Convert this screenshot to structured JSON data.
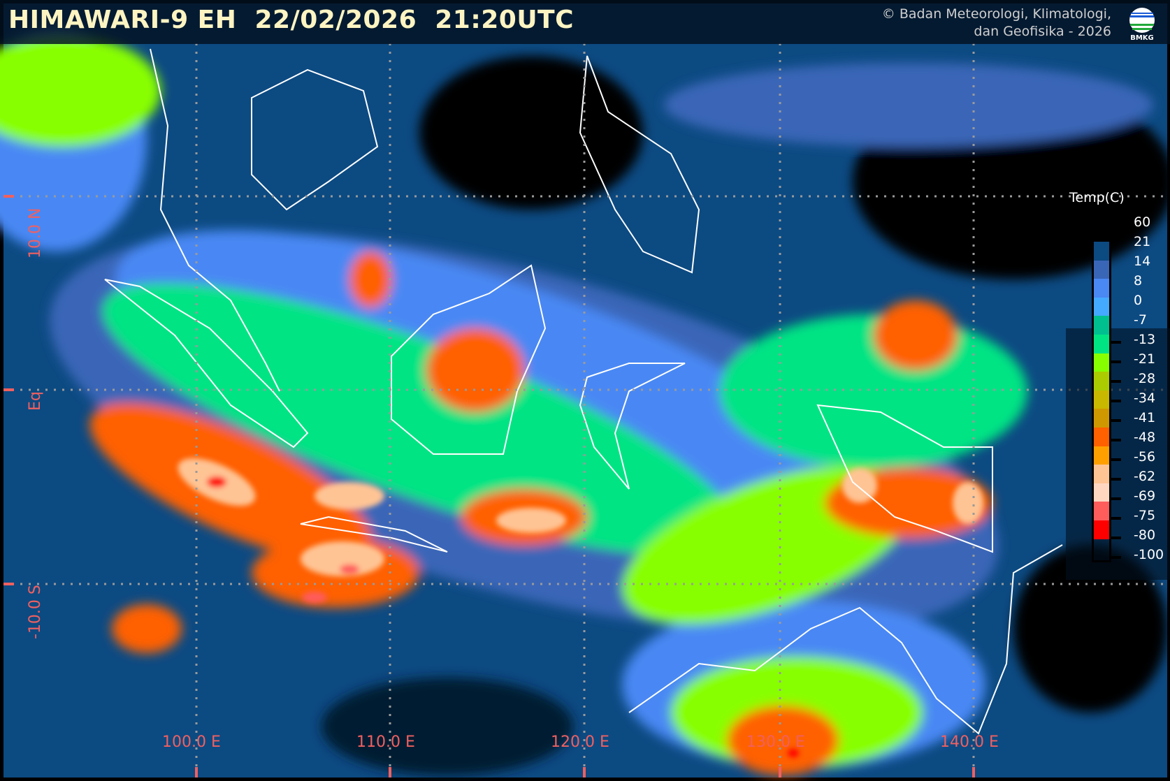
{
  "header": {
    "title": "HIMAWARI-9 EH  22/02/2026  21:20UTC",
    "copyright_line1": "© Badan Meteorologi, Klimatologi,",
    "copyright_line2": "dan Geofisika -  2026",
    "logo_text": "BMKG"
  },
  "axes": {
    "latitude_labels": [
      "10.0 N",
      "Eq",
      "-10.0 S"
    ],
    "longitude_labels": [
      "100.0 E",
      "110.0 E",
      "120.0 E",
      "130.0 E",
      "140.0 E"
    ],
    "grid": true,
    "label_color": "#f06060"
  },
  "legend": {
    "title": "Temp(C)",
    "labels": [
      "60",
      "21",
      "14",
      "8",
      "0",
      "-7",
      "-13",
      "-21",
      "-28",
      "-34",
      "-41",
      "-48",
      "-56",
      "-62",
      "-69",
      "-75",
      "-80",
      "-100"
    ],
    "colors": [
      "#0c4a82",
      "#3a66b8",
      "#4a88f4",
      "#44aaff",
      "#00c090",
      "#00e484",
      "#88ff00",
      "#aacc00",
      "#c8b800",
      "#d09800",
      "#ff6000",
      "#ffa000",
      "#ffc494",
      "#ffd6c0",
      "#ff5c5c",
      "#ff0000"
    ]
  }
}
